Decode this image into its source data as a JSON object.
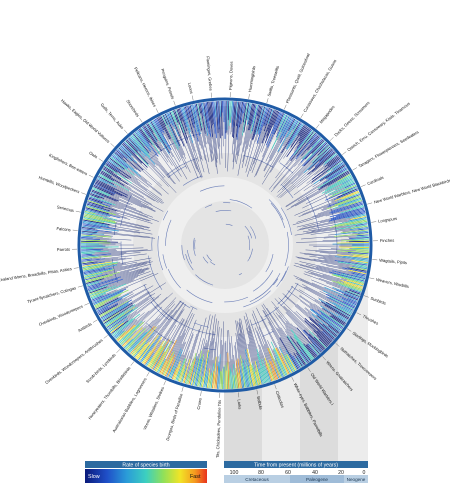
{
  "taxa": [
    "Pigeons, Doves",
    "Hummingbirds",
    "Swifts, Treeswifts",
    "Pheasants, Quail, Guineafowl",
    "Curassows, Chachalacas, Guans",
    "Megapodes",
    "Ducks, Geese, Screamers",
    "Ostrich, Emu, Cassowary, Kiwis, Tinamous",
    "Tanagers, Flowerpiercers, Seedeaters",
    "Cardinals",
    "New World Warblers, New World Blackbirds, Buntings, American Sparrows",
    "Longspurs",
    "Finches",
    "Wagtails, Pipits",
    "Weavers, Waxbills",
    "Sunbirds",
    "Thrushes",
    "Starlings, Mockingbirds",
    "Nuthatches, Treecreepers",
    "Wrens, Gnatcatchers",
    "Old World Warblers I",
    "White-eyes, Babblers, Parrotbills",
    "Cisticolas",
    "Bulbuls",
    "Larks",
    "Tits, Chickadees, Penduline Tits",
    "Crows",
    "Drongos, Birds of Paradise",
    "Vireos, Whistlers, Shrikes",
    "Australasian Babblers, Logrunners",
    "Honeyeaters, Thornbills, Bristlebirds",
    "Scrub-birds, Lyrebirds",
    "Ovenbirds, Woodcreepers, Antthrushes",
    "Antbirds",
    "Ovenbirds, Woodcreepers",
    "Tyrant-flycatchers, Cotingas",
    "New Zealand Wrens, Broadbills, Pittas, Asities",
    "Parrots",
    "Falcons",
    "Seriemas",
    "Hornbills, Woodpeckers",
    "Kingfishers, Bee-eaters",
    "Owls",
    "Hawks, Eagles, Old World Vultures",
    "Gulls, Terns, Auks",
    "Shorebirds",
    "Pelicans, Herons, Ibises",
    "Penguins, Petrels",
    "Loons",
    "Flamingos, Grebes"
  ],
  "legend": {
    "rate_title": "Rate of species birth",
    "slow": "Slow",
    "fast": "Fast",
    "time_title": "Time from present (millions of years)",
    "ticks": [
      "100",
      "80",
      "60",
      "40",
      "20",
      "0"
    ],
    "periods": [
      "Cretaceous",
      "Paleogene",
      "Neogene"
    ]
  },
  "colors": {
    "ring_blue": "#1f5ba6",
    "branch_navy": "#0d1f6e",
    "gradient": [
      "#0a1a7a",
      "#1f4fc8",
      "#2a9bd8",
      "#3ccfc0",
      "#8fe05a",
      "#f2e426",
      "#f59a1f",
      "#e8331e"
    ],
    "legend_bar": "#2c6aa0"
  }
}
